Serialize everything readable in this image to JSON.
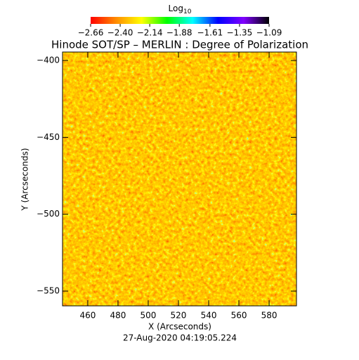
{
  "chart_data": {
    "type": "image",
    "title": "Hinode SOT/SP – MERLIN : Degree of Polarization",
    "colorbar_label": "Log",
    "colorbar_label_sub": "10",
    "colorbar_lim": [
      -2.66,
      -1.09
    ],
    "colorbar_ticks": [
      {
        "value": -2.66,
        "label": "−2.66"
      },
      {
        "value": -2.4,
        "label": "−2.40"
      },
      {
        "value": -2.14,
        "label": "−2.14"
      },
      {
        "value": -1.88,
        "label": "−1.88"
      },
      {
        "value": -1.61,
        "label": "−1.61"
      },
      {
        "value": -1.35,
        "label": "−1.35"
      },
      {
        "value": -1.09,
        "label": "−1.09"
      }
    ],
    "colorscale": [
      "#ff0000",
      "#ff8c00",
      "#ffff00",
      "#00ff00",
      "#00ffff",
      "#0000ff",
      "#8000ff",
      "#000000"
    ],
    "x_label": "X (Arcseconds)",
    "y_label": "Y (Arcseconds)",
    "xlim": [
      443.3,
      598.1
    ],
    "ylim": [
      -559.6,
      -394.5
    ],
    "xticks": [
      460,
      480,
      500,
      520,
      540,
      560,
      580
    ],
    "yticks": [
      {
        "value": -550,
        "label": "−550"
      },
      {
        "value": -500,
        "label": "−500"
      },
      {
        "value": -450,
        "label": "−450"
      },
      {
        "value": -400,
        "label": "−400"
      }
    ],
    "footer": "27-Aug-2020 04:19:05.224"
  }
}
